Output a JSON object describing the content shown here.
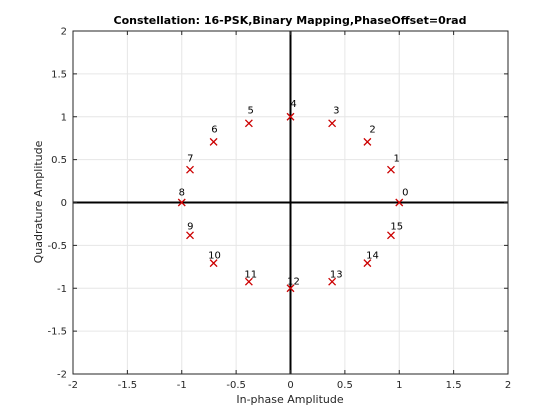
{
  "chart_data": {
    "type": "scatter",
    "title": "Constellation: 16-PSK,Binary Mapping,PhaseOffset=0rad",
    "xlabel": "In-phase Amplitude",
    "ylabel": "Quadrature Amplitude",
    "xlim": [
      -2,
      2
    ],
    "ylim": [
      -2,
      2
    ],
    "xticks": [
      -2,
      -1.5,
      -1,
      -0.5,
      0,
      0.5,
      1,
      1.5,
      2
    ],
    "yticks": [
      -2,
      -1.5,
      -1,
      -0.5,
      0,
      0.5,
      1,
      1.5,
      2
    ],
    "grid": true,
    "marker": "x",
    "marker_color": "#cc0000",
    "points": [
      {
        "label": "0",
        "x": 1.0,
        "y": 0.0
      },
      {
        "label": "1",
        "x": 0.9239,
        "y": 0.3827
      },
      {
        "label": "2",
        "x": 0.7071,
        "y": 0.7071
      },
      {
        "label": "3",
        "x": 0.3827,
        "y": 0.9239
      },
      {
        "label": "4",
        "x": 0.0,
        "y": 1.0
      },
      {
        "label": "5",
        "x": -0.3827,
        "y": 0.9239
      },
      {
        "label": "6",
        "x": -0.7071,
        "y": 0.7071
      },
      {
        "label": "7",
        "x": -0.9239,
        "y": 0.3827
      },
      {
        "label": "8",
        "x": -1.0,
        "y": 0.0
      },
      {
        "label": "9",
        "x": -0.9239,
        "y": -0.3827
      },
      {
        "label": "10",
        "x": -0.7071,
        "y": -0.7071
      },
      {
        "label": "11",
        "x": -0.3827,
        "y": -0.9239
      },
      {
        "label": "12",
        "x": 0.0,
        "y": -1.0
      },
      {
        "label": "13",
        "x": 0.3827,
        "y": -0.9239
      },
      {
        "label": "14",
        "x": 0.7071,
        "y": -0.7071
      },
      {
        "label": "15",
        "x": 0.9239,
        "y": -0.3827
      }
    ]
  }
}
